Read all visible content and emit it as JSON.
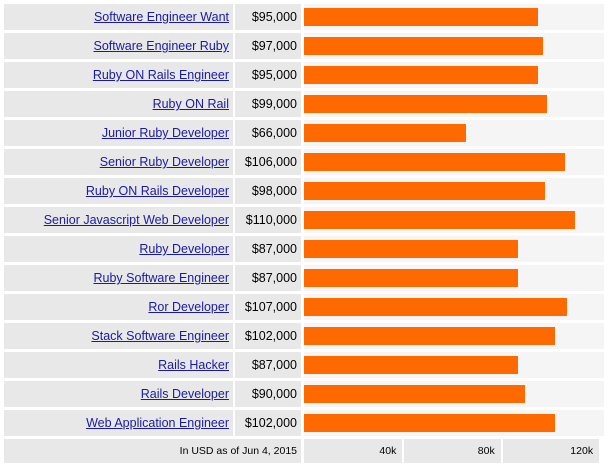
{
  "chart_data": {
    "type": "bar",
    "orientation": "horizontal",
    "categories": [
      "Software Engineer Want",
      "Software Engineer Ruby",
      "Ruby ON Rails Engineer",
      "Ruby ON Rail",
      "Junior Ruby Developer",
      "Senior Ruby Developer",
      "Ruby ON Rails Developer",
      "Senior Javascript Web Developer",
      "Ruby Developer",
      "Ruby Software Engineer",
      "Ror Developer",
      "Stack Software Engineer",
      "Rails Hacker",
      "Rails Developer",
      "Web Application Engineer"
    ],
    "values": [
      95000,
      97000,
      95000,
      99000,
      66000,
      106000,
      98000,
      110000,
      87000,
      87000,
      107000,
      102000,
      87000,
      90000,
      102000
    ],
    "value_labels": [
      "$95,000",
      "$97,000",
      "$95,000",
      "$99,000",
      "$66,000",
      "$106,000",
      "$98,000",
      "$110,000",
      "$87,000",
      "$87,000",
      "$107,000",
      "$102,000",
      "$87,000",
      "$90,000",
      "$102,000"
    ],
    "xlim": [
      0,
      122000
    ],
    "xticks": [
      40000,
      80000,
      120000
    ],
    "xtick_labels": [
      "40k",
      "80k",
      "120k"
    ],
    "bar_color": "#ff6a00",
    "note": "In USD as of Jun 4, 2015"
  }
}
